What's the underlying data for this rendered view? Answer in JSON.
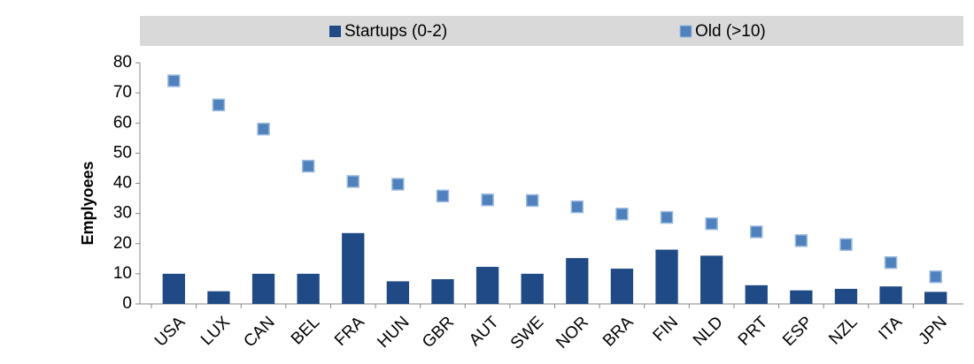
{
  "chart_data": {
    "type": "bar_scatter",
    "y_label": "Emplyoees",
    "categories": [
      "USA",
      "LUX",
      "CAN",
      "BEL",
      "FRA",
      "HUN",
      "GBR",
      "AUT",
      "SWE",
      "NOR",
      "BRA",
      "FIN",
      "NLD",
      "PRT",
      "ESP",
      "NZL",
      "ITA",
      "JPN"
    ],
    "series": [
      {
        "name": "Startups (0-2)",
        "color": "#1f4a85",
        "marker": "bar",
        "values": [
          10,
          4.2,
          10,
          10,
          23.5,
          7.5,
          8.2,
          12.3,
          10,
          15.2,
          11.7,
          18,
          16,
          6.2,
          4.5,
          5,
          5.8,
          4
        ]
      },
      {
        "name": "Old (>10)",
        "color": "#4f81bd",
        "marker": "square",
        "values": [
          74,
          66,
          58,
          45.7,
          40.6,
          39.7,
          35.8,
          34.5,
          34.3,
          32.2,
          29.8,
          28.7,
          26.6,
          23.9,
          21,
          19.7,
          13.7,
          9
        ]
      }
    ],
    "ylim": [
      0,
      80
    ],
    "yticks": [
      0,
      10,
      20,
      30,
      40,
      50,
      60,
      70,
      80
    ],
    "legend": "top"
  }
}
